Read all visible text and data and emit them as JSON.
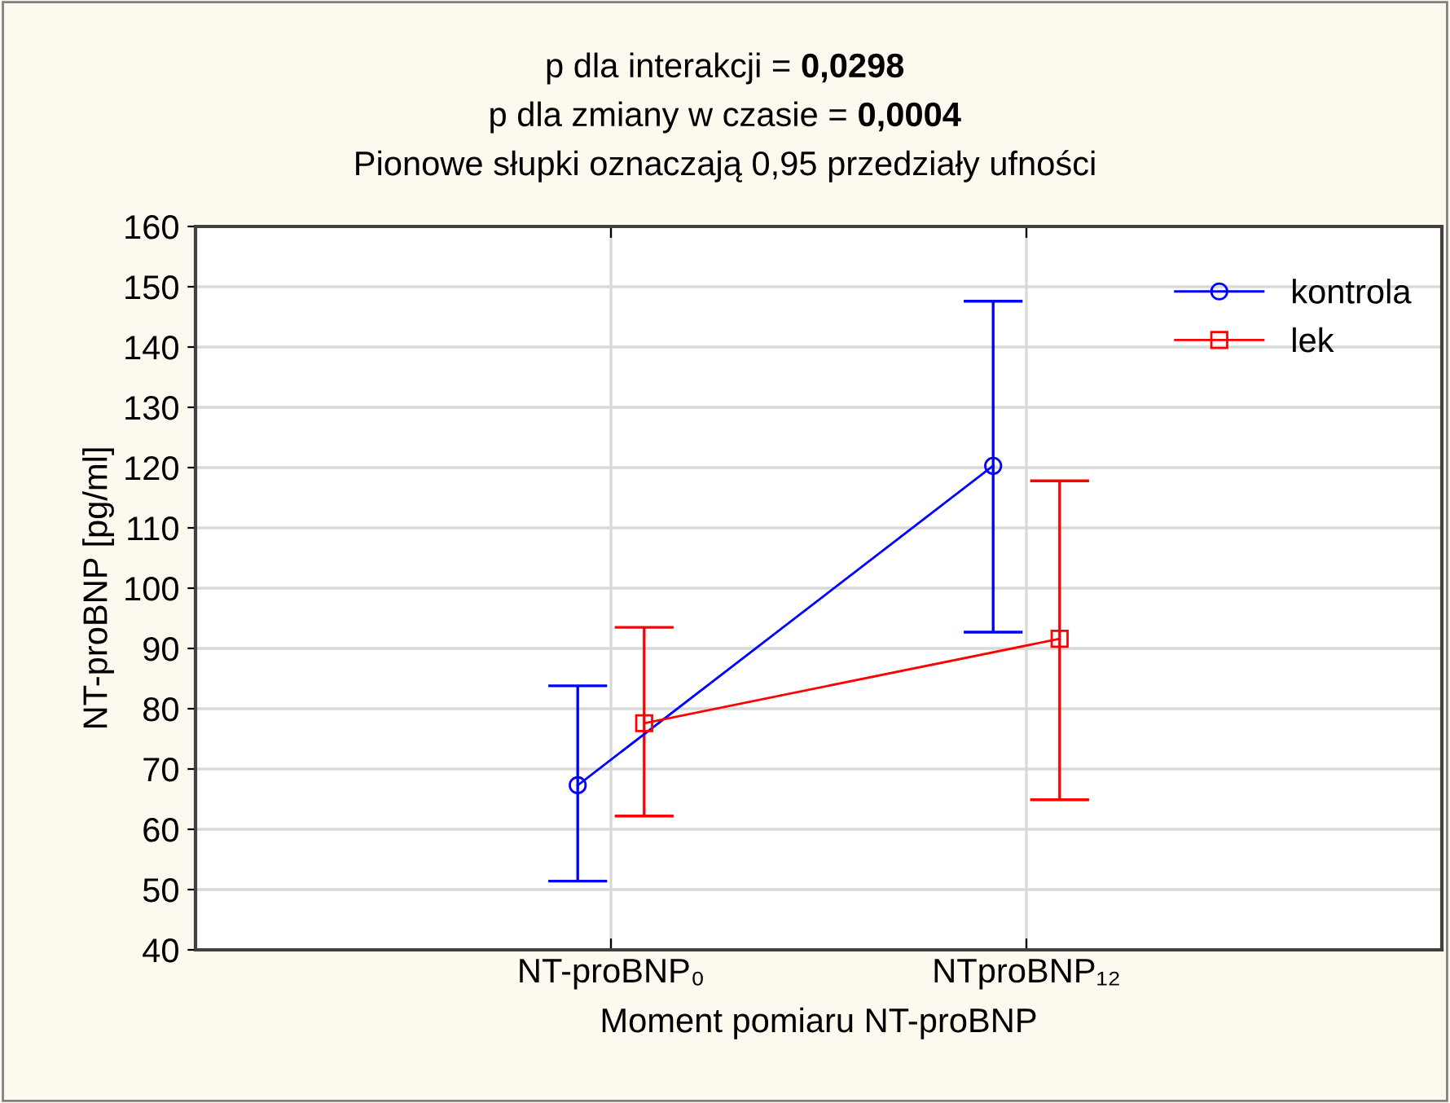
{
  "chart_data": {
    "type": "line",
    "title": "p dla interakcji = 0,0298",
    "subtitle": "p dla zmiany w czasie = 0,0004",
    "annotations": [
      "Pionowe słupki oznaczają 0,95 przedziały ufności"
    ],
    "xlabel": "Moment pomiaru NT-proBNP",
    "ylabel": "NT-proBNP [pg/ml]",
    "categories": [
      "NT-proBNP₀",
      "NTproBNP₁₂"
    ],
    "series": [
      {
        "name": "kontrola",
        "color": "#0000ff",
        "marker": "circle",
        "values": [
          67.3,
          120.3
        ],
        "errors": [
          [
            51.4,
            83.8
          ],
          [
            92.7,
            147.6
          ]
        ]
      },
      {
        "name": "lek",
        "color": "#ff0000",
        "marker": "square",
        "values": [
          77.6,
          91.6
        ],
        "errors": [
          [
            62.2,
            93.5
          ],
          [
            64.9,
            117.8
          ]
        ]
      }
    ],
    "ylim": [
      40,
      160
    ],
    "yticks": [
      40,
      50,
      60,
      70,
      80,
      90,
      100,
      110,
      120,
      130,
      140,
      150,
      160
    ],
    "grid": true,
    "legend": "top right",
    "line_style": "solid"
  }
}
